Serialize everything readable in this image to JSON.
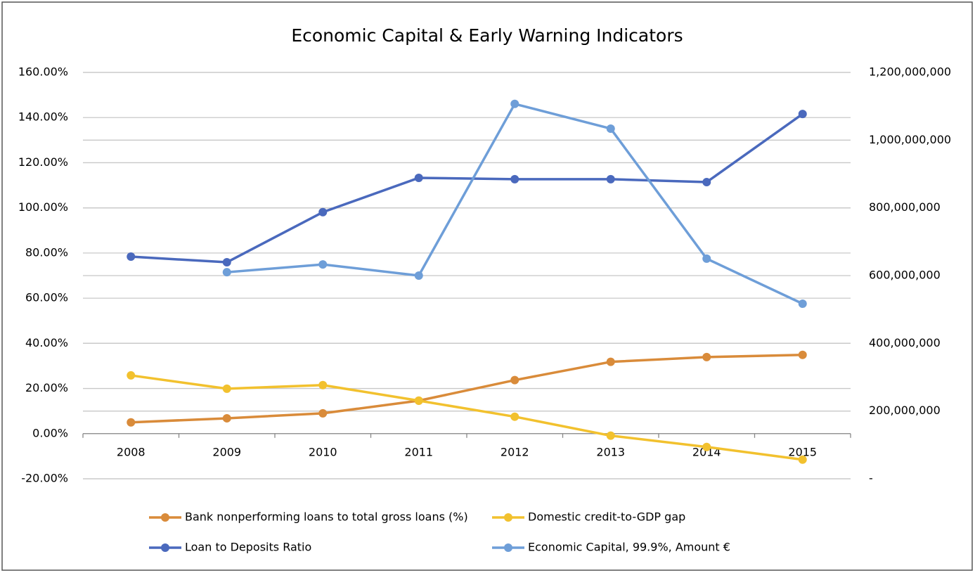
{
  "chart_data": {
    "type": "line",
    "title": "Economic Capital & Early Warning Indicators",
    "categories": [
      "2008",
      "2009",
      "2010",
      "2011",
      "2012",
      "2013",
      "2014",
      "2015"
    ],
    "series": [
      {
        "name": "Bank nonperforming loans to total gross loans (%)",
        "color": "#d98b3a",
        "values": [
          5.0,
          6.8,
          9.0,
          14.6,
          23.7,
          31.8,
          33.9,
          34.9
        ]
      },
      {
        "name": "Domestic credit-to-GDP gap",
        "color": "#f2c12e",
        "values": [
          25.8,
          19.9,
          21.5,
          14.6,
          7.5,
          -0.9,
          -5.9,
          -11.5
        ]
      },
      {
        "name": "Loan to Deposits Ratio",
        "color": "#4a69bd",
        "values": [
          78.4,
          75.9,
          98.1,
          113.3,
          112.7,
          112.7,
          111.4,
          141.6
        ]
      },
      {
        "name": "Economic Capital, 99.9%, Amount €",
        "color": "#6e9ed8",
        "axis": "y2",
        "values": [
          null,
          610000000,
          633000000,
          600000000,
          1107000000,
          1034000000,
          650000000,
          517000000
        ]
      }
    ],
    "ylim": [
      -20,
      160
    ],
    "yticks": [
      {
        "value": -20,
        "label": "-20.00%"
      },
      {
        "value": 0,
        "label": "0.00%"
      },
      {
        "value": 20,
        "label": "20.00%"
      },
      {
        "value": 40,
        "label": "40.00%"
      },
      {
        "value": 60,
        "label": "60.00%"
      },
      {
        "value": 80,
        "label": "80.00%"
      },
      {
        "value": 100,
        "label": "100.00%"
      },
      {
        "value": 120,
        "label": "120.00%"
      },
      {
        "value": 140,
        "label": "140.00%"
      },
      {
        "value": 160,
        "label": "160.00%"
      }
    ],
    "y2lim": [
      0,
      1200000000
    ],
    "y2ticks": [
      {
        "value": 0,
        "label": "-"
      },
      {
        "value": 200000000,
        "label": "200,000,000"
      },
      {
        "value": 400000000,
        "label": "400,000,000"
      },
      {
        "value": 600000000,
        "label": "600,000,000"
      },
      {
        "value": 800000000,
        "label": "800,000,000"
      },
      {
        "value": 1000000000,
        "label": "1,000,000,000"
      },
      {
        "value": 1200000000,
        "label": "1,200,000,000"
      }
    ],
    "grid": true,
    "legend": "bottom"
  }
}
